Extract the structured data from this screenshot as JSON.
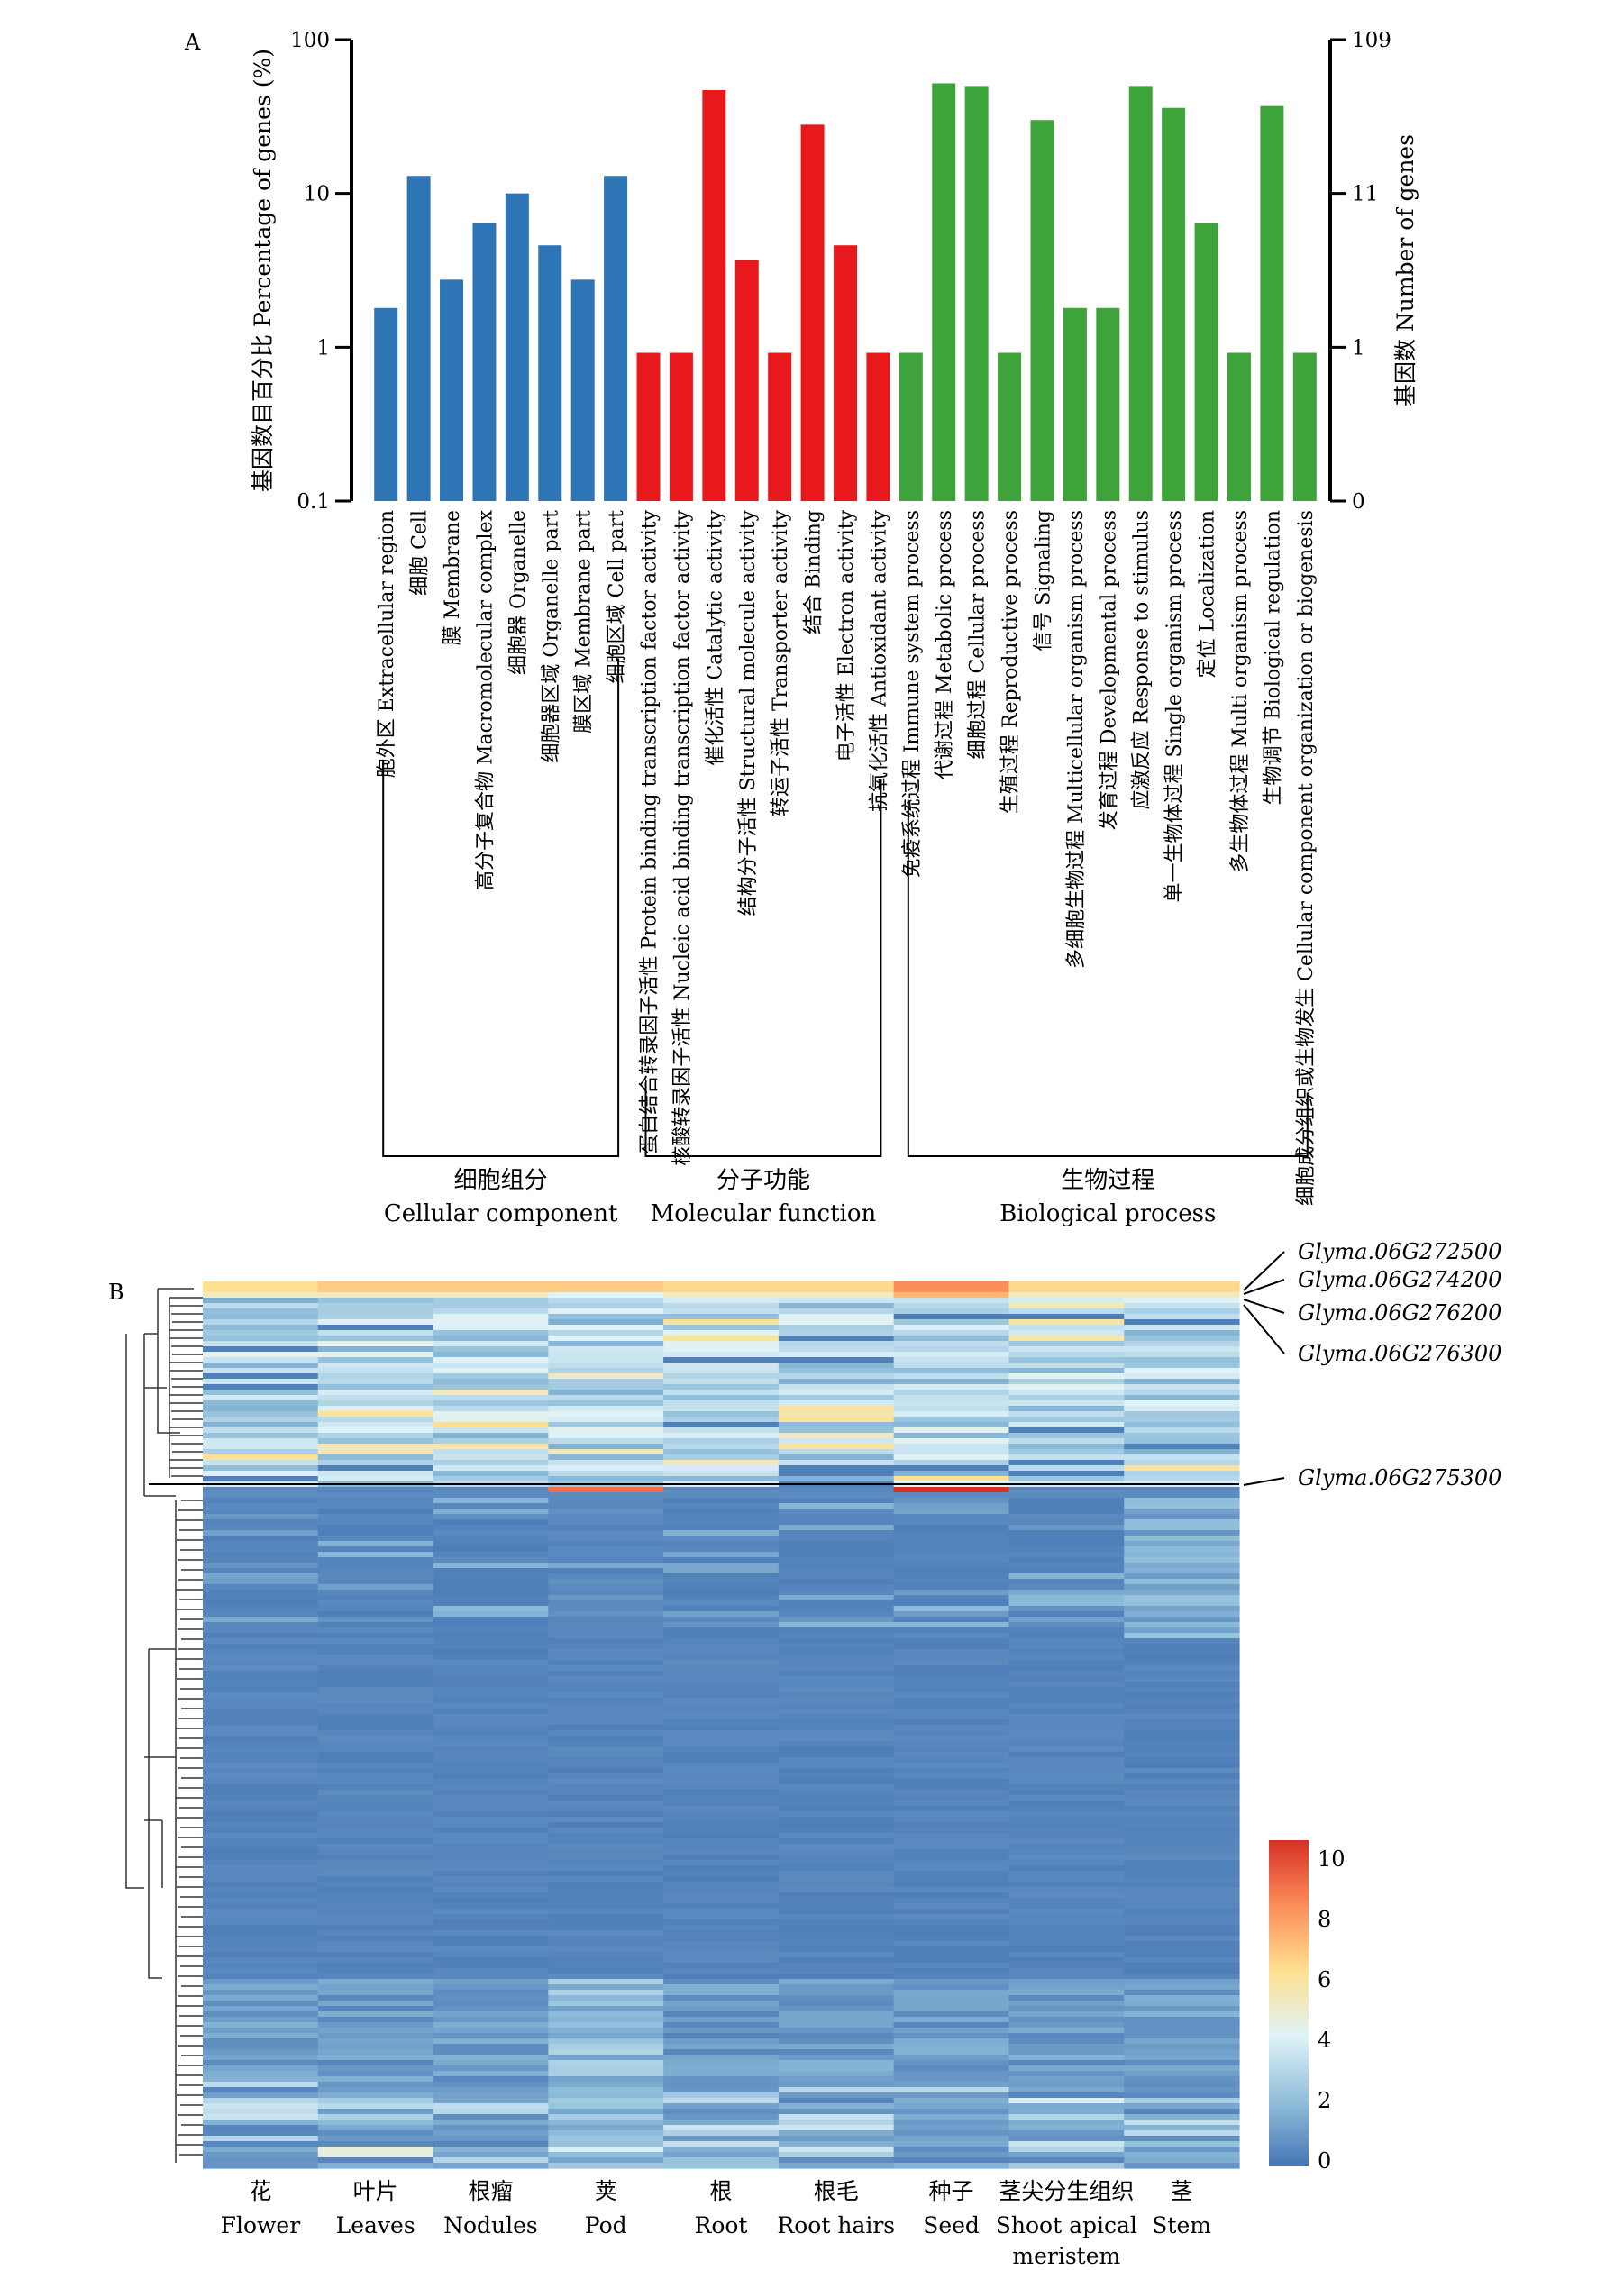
{
  "panel_a": {
    "letter": "A",
    "ylabel_left": "基因数目百分比 Percentage of genes (%)",
    "ylabel_right": "基因数 Number of genes",
    "left_ticks": [
      "100",
      "10",
      "1",
      "0.1"
    ],
    "right_ticks": [
      "109",
      "11",
      "1",
      "0"
    ],
    "groups": [
      {
        "zh": "细胞组分",
        "en": "Cellular component",
        "color": "#2e75b6"
      },
      {
        "zh": "分子功能",
        "en": "Molecular function",
        "color": "#e8191c"
      },
      {
        "zh": "生物过程",
        "en": "Biological process",
        "color": "#3ea33a"
      }
    ]
  },
  "panel_b": {
    "letter": "B",
    "annotations": [
      "Glyma.06G272500",
      "Glyma.06G274200",
      "Glyma.06G276200",
      "Glyma.06G276300",
      "Glyma.06G275300"
    ],
    "tissues": [
      {
        "zh": "花",
        "en": "Flower"
      },
      {
        "zh": "叶片",
        "en": "Leaves"
      },
      {
        "zh": "根瘤",
        "en": "Nodules"
      },
      {
        "zh": "荚",
        "en": "Pod"
      },
      {
        "zh": "根",
        "en": "Root"
      },
      {
        "zh": "根毛",
        "en": "Root hairs"
      },
      {
        "zh": "种子",
        "en": "Seed"
      },
      {
        "zh": "茎尖分生组织",
        "en": "Shoot apical",
        "en2": "meristem"
      },
      {
        "zh": "茎",
        "en": "Stem"
      }
    ],
    "colorbar_ticks": [
      "10",
      "8",
      "6",
      "4",
      "2",
      "0"
    ],
    "colorbar_colors": [
      "#d73027",
      "#fc8d59",
      "#fee090",
      "#e0f3f8",
      "#91bfdb",
      "#4575b4"
    ]
  },
  "chart_data": [
    {
      "type": "bar",
      "scale": "log",
      "ylabel": "基因数目百分比 Percentage of genes (%)",
      "y2label": "基因数 Number of genes",
      "ylim": [
        0.1,
        100
      ],
      "y2lim": [
        0,
        109
      ],
      "categories": [
        "胞外区 Extracellular region",
        "细胞 Cell",
        "膜 Membrane",
        "高分子复合物 Macromolecular complex",
        "细胞器 Organelle",
        "细胞器区域 Organelle part",
        "膜区域 Membrane part",
        "细胞区域 Cell part",
        "蛋白结合转录因子活性 Protein binding transcription factor activity",
        "核酸转录因子活性 Nucleic acid binding transcription factor activity",
        "催化活性 Catalytic activity",
        "结构分子活性 Structural molecule activity",
        "转运子活性 Transporter activity",
        "结合 Binding",
        "电子活性 Electron activity",
        "抗氧化活性 Antioxidant activity",
        "免疫系统过程 Immune system process",
        "代谢过程 Metabolic process",
        "细胞过程 Cellular process",
        "生殖过程 Reproductive process",
        "信号 Signaling",
        "多细胞生物过程 Multicellular organism process",
        "发育过程 Developmental process",
        "应激反应 Response to stimulus",
        "单一生物体过程 Single organism process",
        "定位 Localization",
        "多生物体过程 Multi organism process",
        "生物调节 Biological regulation",
        "细胞成分组织或生物发生 Cellular component organization or biogenesis"
      ],
      "values": [
        1.8,
        13,
        2.75,
        6.4,
        10,
        4.6,
        2.75,
        13,
        0.92,
        0.92,
        47,
        3.7,
        0.92,
        28,
        4.6,
        0.92,
        0.92,
        52,
        50,
        0.92,
        30,
        1.8,
        1.8,
        50,
        36,
        6.4,
        0.92,
        37,
        0.92
      ],
      "groups": [
        {
          "name": "Cellular component",
          "start": 0,
          "end": 7
        },
        {
          "name": "Molecular function",
          "start": 8,
          "end": 15
        },
        {
          "name": "Biological process",
          "start": 16,
          "end": 28
        }
      ]
    },
    {
      "type": "heatmap",
      "columns": [
        "Flower",
        "Leaves",
        "Nodules",
        "Pod",
        "Root",
        "Root hairs",
        "Seed",
        "Shoot apical meristem",
        "Stem"
      ],
      "colorbar_range": [
        0,
        10
      ],
      "row_annotations": [
        "Glyma.06G272500",
        "Glyma.06G274200",
        "Glyma.06G276200",
        "Glyma.06G276300",
        "Glyma.06G275300"
      ],
      "block_profiles": [
        {
          "block": "top-cluster",
          "values": [
            3,
            3.5,
            3,
            2.5,
            3,
            3,
            2.5,
            3,
            3
          ]
        },
        {
          "block": "Glyma.06G275300 row",
          "values": [
            0.5,
            0.5,
            0.5,
            8,
            0.5,
            0.5,
            10,
            0.5,
            0.5
          ]
        },
        {
          "block": "low-expression bulk",
          "values": [
            0.3,
            0.3,
            0.3,
            0.5,
            0.3,
            0.3,
            0.3,
            0.3,
            0.4
          ]
        }
      ]
    }
  ]
}
